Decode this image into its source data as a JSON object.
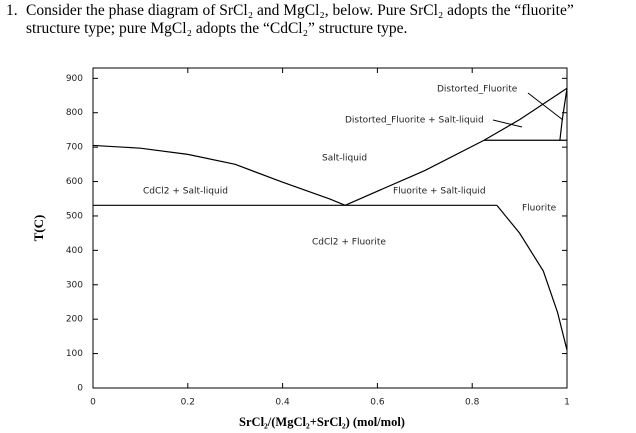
{
  "question": {
    "number": "1.",
    "lines": [
      "Consider the phase diagram of SrCl₂ and MgCl₂, below. Pure SrCl₂ adopts the “fluorite”",
      "structure type; pure MgCl₂ adopts the “CdCl₂” structure type."
    ]
  },
  "chart_data": {
    "type": "line",
    "x_label": "SrCl₂/(MgCl₂+SrCl₂) (mol/mol)",
    "y_label": "T(C)",
    "xlim": [
      0,
      1
    ],
    "ylim": [
      0,
      930
    ],
    "xticks": [
      0,
      0.2,
      0.4,
      0.6,
      0.8,
      1
    ],
    "yticks": [
      0,
      100,
      200,
      300,
      400,
      500,
      600,
      700,
      800,
      900
    ],
    "annotations": [
      "Distorted_Fluorite",
      "Distorted_Fluorite + Salt-liquid",
      "Salt-liquid",
      "CdCl2 + Salt-liquid",
      "Fluorite + Salt-liquid",
      "Fluorite",
      "CdCl2 + Fluorite"
    ],
    "series": [
      {
        "color": "#000000",
        "x": [
          0,
          0.1,
          0.2,
          0.3,
          0.4,
          0.5,
          0.532
        ],
        "values": [
          705,
          697,
          679,
          650,
          598,
          549,
          531
        ]
      },
      {
        "color": "#000000",
        "x": [
          0.532,
          0.7,
          0.825,
          0.9,
          1
        ],
        "values": [
          531,
          632,
          720,
          780,
          871
        ]
      },
      {
        "color": "#000000",
        "x": [
          0,
          0.852
        ],
        "values": [
          531,
          531
        ]
      },
      {
        "color": "#000000",
        "x": [
          0.852,
          0.9,
          0.95,
          0.98,
          1
        ],
        "values": [
          531,
          450,
          340,
          220,
          110
        ]
      },
      {
        "color": "#000000",
        "x": [
          0.825,
          1
        ],
        "values": [
          720,
          720
        ]
      },
      {
        "color": "#000000",
        "x": [
          1,
          0.99,
          0.985
        ],
        "values": [
          871,
          780,
          720
        ]
      }
    ]
  }
}
